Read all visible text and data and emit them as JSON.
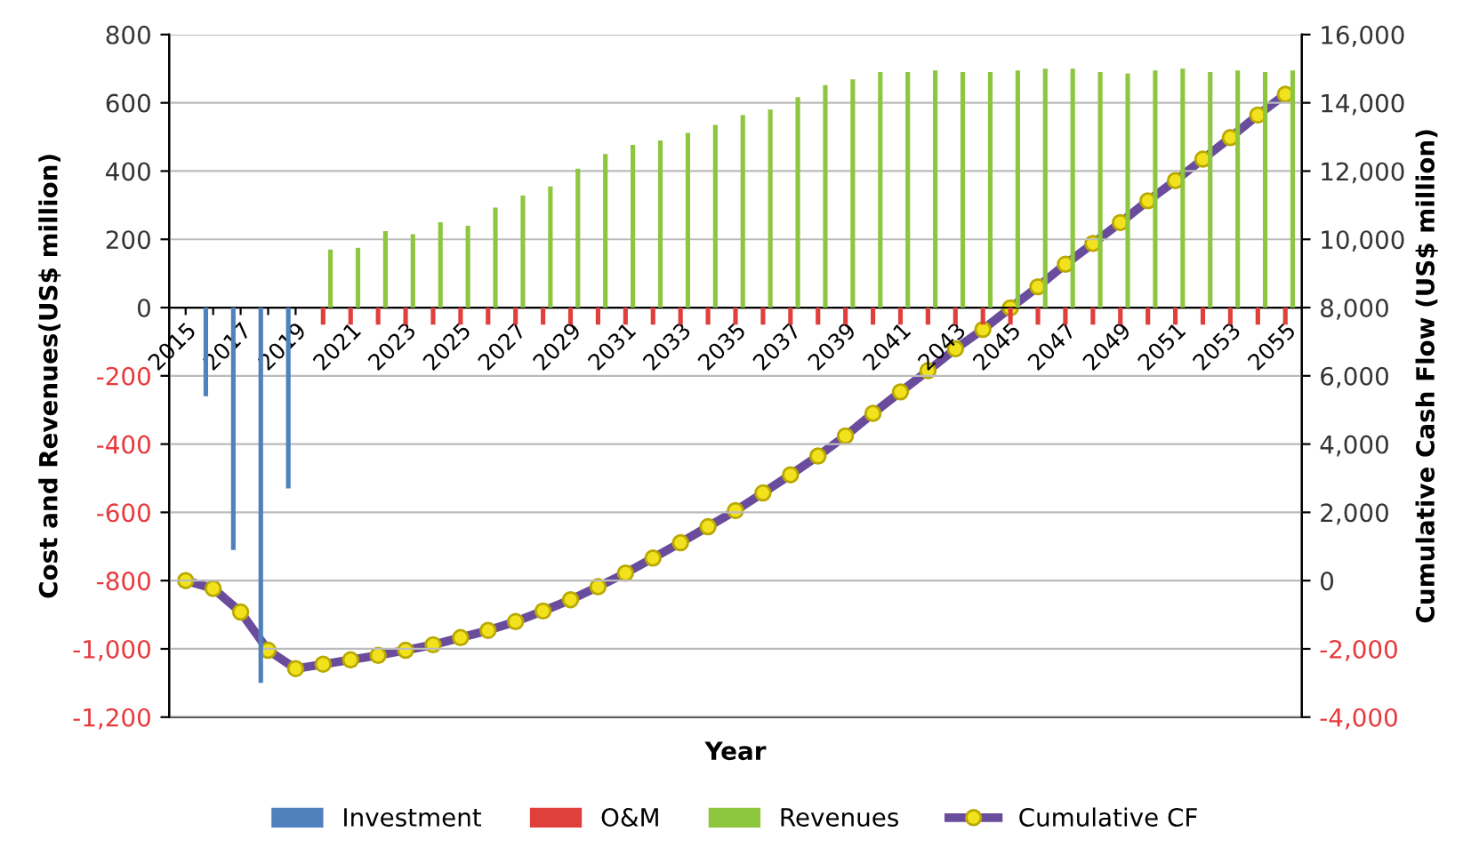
{
  "chart_data": {
    "type": "bar",
    "xlabel": "Year",
    "ylabel": "Cost and Revenues(US$ million)",
    "y2label": "Cumulative Cash Flow (US$ million)",
    "categories": [
      "2015",
      null,
      "2017",
      null,
      "2019",
      null,
      "2021",
      null,
      "2023",
      null,
      "2025",
      null,
      "2027",
      null,
      "2029",
      null,
      "2031",
      null,
      "2033",
      null,
      "2035",
      null,
      "2037",
      null,
      "2039",
      null,
      "2041",
      null,
      "2043",
      null,
      "2045",
      null,
      "2047",
      null,
      "2049",
      null,
      "2051",
      null,
      "2053",
      null,
      "2055"
    ],
    "series": [
      {
        "name": "Investment",
        "color": "#4f81bd",
        "values": [
          null,
          -260,
          -710,
          -1100,
          -530,
          null,
          null,
          null,
          null,
          null,
          null,
          null,
          null,
          null,
          null,
          null,
          null,
          null,
          null,
          null,
          null,
          null,
          null,
          null,
          null,
          null,
          null,
          null,
          null,
          null,
          null,
          null,
          null,
          null,
          null,
          null,
          null,
          null,
          null,
          null,
          null
        ]
      },
      {
        "name": "O&M",
        "color": "#e0403c",
        "values": [
          null,
          null,
          null,
          null,
          null,
          -50,
          -50,
          -50,
          -50,
          -50,
          -50,
          -50,
          -50,
          -50,
          -50,
          -50,
          -50,
          -50,
          -50,
          -50,
          -50,
          -50,
          -50,
          -50,
          -50,
          -50,
          -50,
          -50,
          -50,
          -50,
          -50,
          -50,
          -50,
          -50,
          -50,
          -50,
          -50,
          -50,
          -50,
          -50,
          -50
        ]
      },
      {
        "name": "Revenues",
        "color": "#8dc63f",
        "values": [
          null,
          null,
          null,
          null,
          null,
          170,
          175,
          224,
          215,
          250,
          240,
          293,
          328,
          355,
          407,
          450,
          477,
          490,
          512,
          535,
          564,
          580,
          617,
          652,
          669,
          690,
          690,
          695,
          690,
          690,
          695,
          700,
          700,
          690,
          686,
          695,
          700,
          690,
          695,
          690,
          695
        ]
      },
      {
        "name": "Cumulative CF",
        "type": "line",
        "axis": "y2",
        "color": "#6a4c9c",
        "marker": "circle",
        "values": [
          0,
          -230,
          -920,
          -2040,
          -2580,
          -2450,
          -2320,
          -2190,
          -2040,
          -1880,
          -1670,
          -1460,
          -1200,
          -890,
          -560,
          -180,
          220,
          660,
          1110,
          1580,
          2050,
          2570,
          3100,
          3650,
          4240,
          4900,
          5530,
          6150,
          6790,
          7360,
          7990,
          8610,
          9270,
          9880,
          10490,
          11130,
          11720,
          12350,
          12980,
          13640,
          14250
        ]
      }
    ],
    "ylim": [
      -1200,
      800
    ],
    "yticks": [
      {
        "value": -1200,
        "label": "-1,200"
      },
      {
        "value": -1000,
        "label": "-1,000"
      },
      -800,
      -600,
      -400,
      -200,
      0,
      200,
      400,
      600,
      800
    ],
    "y2lim": [
      -4000,
      16000
    ],
    "y2ticks": [
      {
        "value": -4000,
        "label": "-4,000"
      },
      {
        "value": -2000,
        "label": "-2,000"
      },
      0,
      {
        "value": 2000,
        "label": "2,000"
      },
      {
        "value": 4000,
        "label": "4,000"
      },
      {
        "value": 6000,
        "label": "6,000"
      },
      {
        "value": 8000,
        "label": "8,000"
      },
      {
        "value": 10000,
        "label": "10,000"
      },
      {
        "value": 12000,
        "label": "12,000"
      },
      {
        "value": 14000,
        "label": "14,000"
      },
      {
        "value": 16000,
        "label": "16,000"
      }
    ],
    "grid": "y",
    "legend": "bottom"
  }
}
